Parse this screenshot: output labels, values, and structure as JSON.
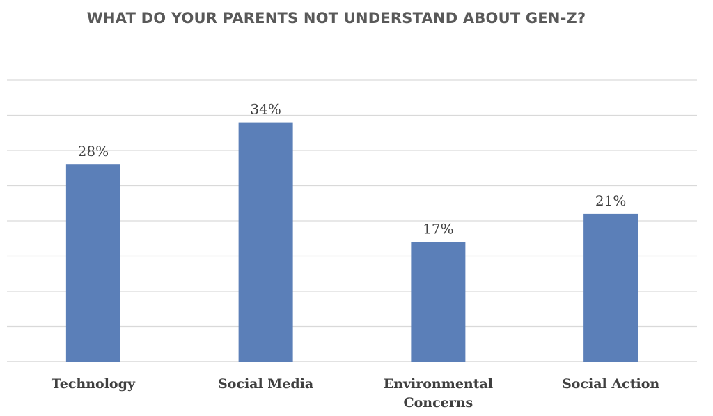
{
  "chart_data": {
    "type": "bar",
    "title": "WHAT DO YOUR PARENTS NOT UNDERSTAND ABOUT GEN-Z?",
    "categories": [
      "Technology",
      "Social Media",
      "Environmental Concerns",
      "Social Action"
    ],
    "category_lines": [
      [
        "Technology"
      ],
      [
        "Social Media"
      ],
      [
        "Environmental",
        "Concerns"
      ],
      [
        "Social Action"
      ]
    ],
    "values": [
      28,
      34,
      17,
      21
    ],
    "data_labels": [
      "28%",
      "34%",
      "17%",
      "21%"
    ],
    "ylim": [
      0,
      40
    ],
    "y_gridline_step": 5,
    "grid": true,
    "legend": "none",
    "bar_color": "#5b7fb8",
    "gridline_color": "#d9d9d9",
    "text_color": "#404040",
    "title_color": "#595959"
  }
}
